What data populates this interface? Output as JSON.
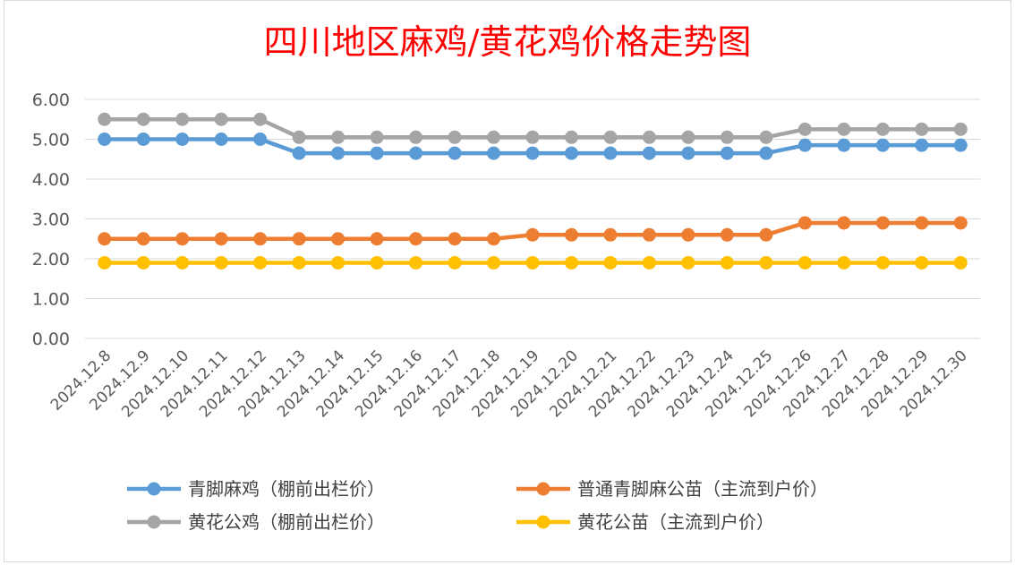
{
  "chart_data": {
    "type": "line",
    "title": "四川地区麻鸡/黄花鸡价格走势图",
    "xlabel": "",
    "ylabel": "",
    "ylim": [
      0,
      6
    ],
    "yticks": [
      "0.00",
      "1.00",
      "2.00",
      "3.00",
      "4.00",
      "5.00",
      "6.00"
    ],
    "grid": "horizontal",
    "legend_position": "bottom",
    "categories": [
      "2024.12.8",
      "2024.12.9",
      "2024.12.10",
      "2024.12.11",
      "2024.12.12",
      "2024.12.13",
      "2024.12.14",
      "2024.12.15",
      "2024.12.16",
      "2024.12.17",
      "2024.12.18",
      "2024.12.19",
      "2024.12.20",
      "2024.12.21",
      "2024.12.22",
      "2024.12.23",
      "2024.12.24",
      "2024.12.25",
      "2024.12.26",
      "2024.12.27",
      "2024.12.28",
      "2024.12.29",
      "2024.12.30"
    ],
    "series": [
      {
        "name": "青脚麻鸡（棚前出栏价）",
        "color": "#5b9bd5",
        "values": [
          5.0,
          5.0,
          5.0,
          5.0,
          5.0,
          4.65,
          4.65,
          4.65,
          4.65,
          4.65,
          4.65,
          4.65,
          4.65,
          4.65,
          4.65,
          4.65,
          4.65,
          4.65,
          4.85,
          4.85,
          4.85,
          4.85,
          4.85
        ]
      },
      {
        "name": "普通青脚麻公苗（主流到户价）",
        "color": "#ed7d31",
        "values": [
          2.5,
          2.5,
          2.5,
          2.5,
          2.5,
          2.5,
          2.5,
          2.5,
          2.5,
          2.5,
          2.5,
          2.6,
          2.6,
          2.6,
          2.6,
          2.6,
          2.6,
          2.6,
          2.9,
          2.9,
          2.9,
          2.9,
          2.9
        ]
      },
      {
        "name": "黄花公鸡（棚前出栏价）",
        "color": "#a5a5a5",
        "values": [
          5.5,
          5.5,
          5.5,
          5.5,
          5.5,
          5.05,
          5.05,
          5.05,
          5.05,
          5.05,
          5.05,
          5.05,
          5.05,
          5.05,
          5.05,
          5.05,
          5.05,
          5.05,
          5.25,
          5.25,
          5.25,
          5.25,
          5.25
        ]
      },
      {
        "name": "黄花公苗（主流到户价）",
        "color": "#ffc000",
        "values": [
          1.9,
          1.9,
          1.9,
          1.9,
          1.9,
          1.9,
          1.9,
          1.9,
          1.9,
          1.9,
          1.9,
          1.9,
          1.9,
          1.9,
          1.9,
          1.9,
          1.9,
          1.9,
          1.9,
          1.9,
          1.9,
          1.9,
          1.9
        ]
      }
    ]
  }
}
